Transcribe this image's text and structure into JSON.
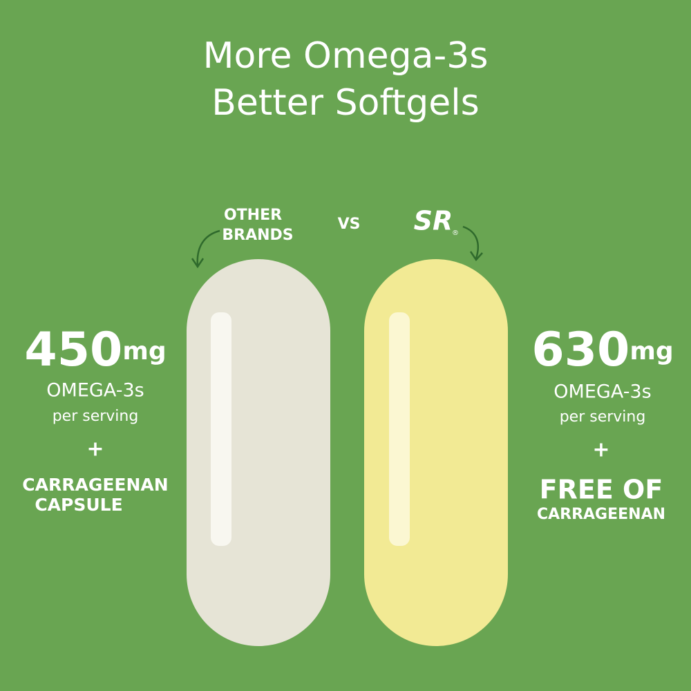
{
  "title": {
    "lines": [
      "More Omega-3s",
      "Better Softgels"
    ]
  },
  "header": {
    "other_label": [
      "OTHER",
      "BRANDS"
    ],
    "vs": "VS",
    "brand_logo": "SR",
    "brand_mark": "®"
  },
  "left": {
    "amount": 450,
    "unit": "mg",
    "nutrient": "OMEGA-3s",
    "basis": "per serving",
    "plus": "+",
    "feature": [
      "CARRAGEENAN",
      "CAPSULE"
    ]
  },
  "right": {
    "amount": 630,
    "unit": "mg",
    "nutrient": "OMEGA-3s",
    "basis": "per serving",
    "plus": "+",
    "feature": [
      "FREE OF",
      "CARRAGEENAN"
    ]
  }
}
